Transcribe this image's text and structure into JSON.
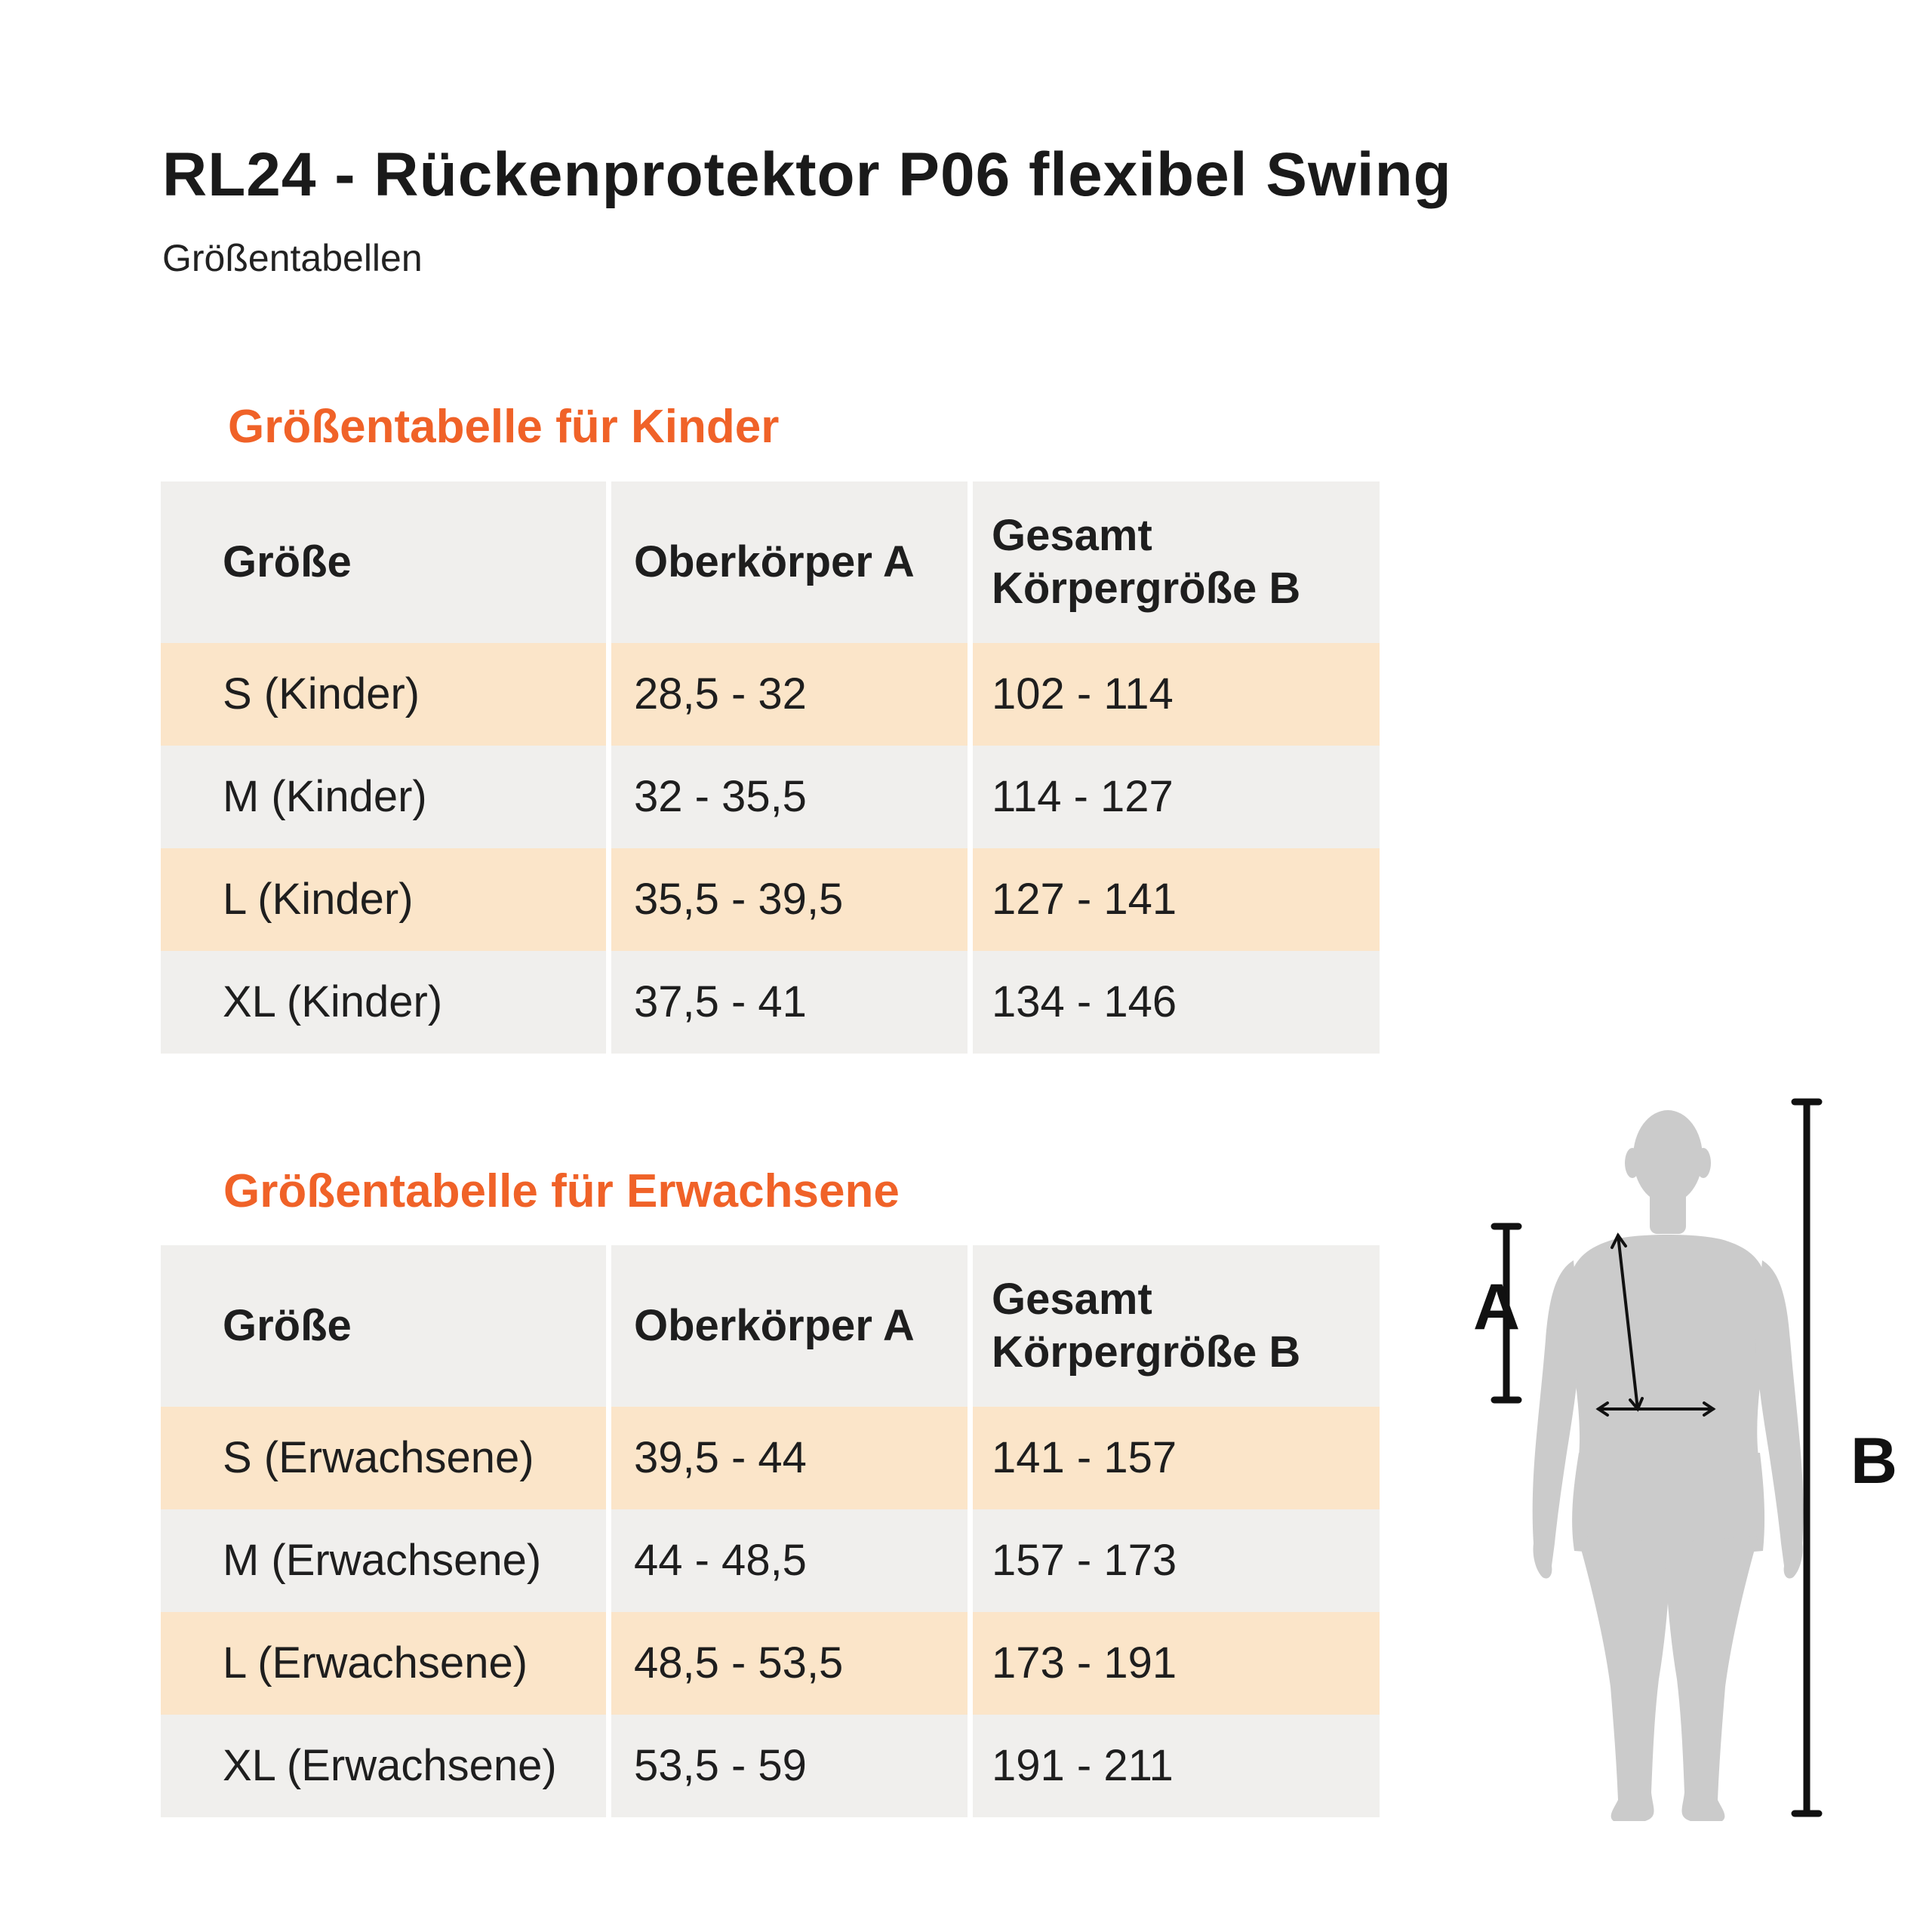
{
  "title": "RL24 - Rückenprotektor P06 flexibel Swing",
  "subtitle": "Größentabellen",
  "colors": {
    "accent": "#f06228",
    "row_odd": "#fbe5c9",
    "row_even": "#f0efed",
    "header_bg": "#f0efed",
    "text": "#1e1e1e",
    "figure": "#cbcbcb",
    "measure_line": "#111111"
  },
  "tables": [
    {
      "heading": "Größentabelle für Kinder",
      "columns": [
        "Größe",
        "Oberkörper A",
        "Gesamt\nKörpergröße B"
      ],
      "rows": [
        [
          "S (Kinder)",
          "28,5 - 32",
          "102 - 114"
        ],
        [
          "M (Kinder)",
          "32 - 35,5",
          "114 - 127"
        ],
        [
          "L (Kinder)",
          "35,5 - 39,5",
          "127 - 141"
        ],
        [
          "XL (Kinder)",
          "37,5 - 41",
          "134 - 146"
        ]
      ]
    },
    {
      "heading": "Größentabelle für Erwachsene",
      "columns": [
        "Größe",
        "Oberkörper A",
        "Gesamt\nKörpergröße B"
      ],
      "rows": [
        [
          "S (Erwachsene)",
          "39,5 - 44",
          "141 - 157"
        ],
        [
          "M (Erwachsene)",
          "44 - 48,5",
          "157 - 173"
        ],
        [
          "L (Erwachsene)",
          "48,5 - 53,5",
          "173 - 191"
        ],
        [
          "XL (Erwachsene)",
          "53,5 - 59",
          "191 - 211"
        ]
      ]
    }
  ],
  "figure": {
    "icon": "human-body-back-icon",
    "label_a": "A",
    "label_b": "B"
  }
}
